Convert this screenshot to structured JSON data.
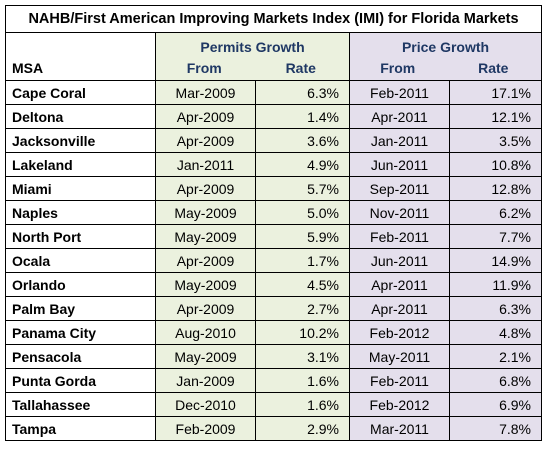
{
  "title": "NAHB/First American Improving Markets Index (IMI) for Florida Markets",
  "headers": {
    "msa": "MSA",
    "permits_group": "Permits Growth",
    "price_group": "Price Growth",
    "from": "From",
    "rate": "Rate"
  },
  "colors": {
    "permits_fill": "#ebf1de",
    "price_fill": "#e4dfec",
    "header_text": "#1f3864"
  },
  "rows": [
    {
      "msa": "Cape Coral",
      "permits_from": "Mar-2009",
      "permits_rate": "6.3%",
      "price_from": "Feb-2011",
      "price_rate": "17.1%"
    },
    {
      "msa": "Deltona",
      "permits_from": "Apr-2009",
      "permits_rate": "1.4%",
      "price_from": "Apr-2011",
      "price_rate": "12.1%"
    },
    {
      "msa": "Jacksonville",
      "permits_from": "Apr-2009",
      "permits_rate": "3.6%",
      "price_from": "Jan-2011",
      "price_rate": "3.5%"
    },
    {
      "msa": "Lakeland",
      "permits_from": "Jan-2011",
      "permits_rate": "4.9%",
      "price_from": "Jun-2011",
      "price_rate": "10.8%"
    },
    {
      "msa": "Miami",
      "permits_from": "Apr-2009",
      "permits_rate": "5.7%",
      "price_from": "Sep-2011",
      "price_rate": "12.8%"
    },
    {
      "msa": "Naples",
      "permits_from": "May-2009",
      "permits_rate": "5.0%",
      "price_from": "Nov-2011",
      "price_rate": "6.2%"
    },
    {
      "msa": "North Port",
      "permits_from": "May-2009",
      "permits_rate": "5.9%",
      "price_from": "Feb-2011",
      "price_rate": "7.7%"
    },
    {
      "msa": "Ocala",
      "permits_from": "Apr-2009",
      "permits_rate": "1.7%",
      "price_from": "Jun-2011",
      "price_rate": "14.9%"
    },
    {
      "msa": "Orlando",
      "permits_from": "May-2009",
      "permits_rate": "4.5%",
      "price_from": "Apr-2011",
      "price_rate": "11.9%"
    },
    {
      "msa": "Palm Bay",
      "permits_from": "Apr-2009",
      "permits_rate": "2.7%",
      "price_from": "Apr-2011",
      "price_rate": "6.3%"
    },
    {
      "msa": "Panama City",
      "permits_from": "Aug-2010",
      "permits_rate": "10.2%",
      "price_from": "Feb-2012",
      "price_rate": "4.8%"
    },
    {
      "msa": "Pensacola",
      "permits_from": "May-2009",
      "permits_rate": "3.1%",
      "price_from": "May-2011",
      "price_rate": "2.1%"
    },
    {
      "msa": "Punta Gorda",
      "permits_from": "Jan-2009",
      "permits_rate": "1.6%",
      "price_from": "Feb-2011",
      "price_rate": "6.8%"
    },
    {
      "msa": "Tallahassee",
      "permits_from": "Dec-2010",
      "permits_rate": "1.6%",
      "price_from": "Feb-2012",
      "price_rate": "6.9%"
    },
    {
      "msa": "Tampa",
      "permits_from": "Feb-2009",
      "permits_rate": "2.9%",
      "price_from": "Mar-2011",
      "price_rate": "7.8%"
    }
  ]
}
